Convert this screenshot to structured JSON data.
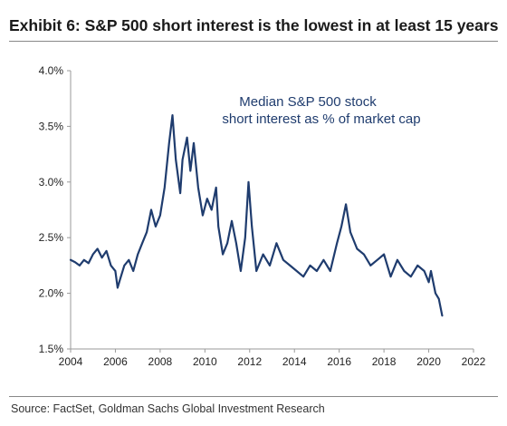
{
  "title": "Exhibit 6: S&P 500 short interest is the lowest in at least 15 years",
  "source": "Source: FactSet, Goldman Sachs Global Investment Research",
  "colors": {
    "line": "#1f3c6e",
    "annotation": "#1f3c6e",
    "axis": "#9a9a9a",
    "text": "#222222"
  },
  "chart_data": {
    "type": "line",
    "title": "",
    "xlabel": "",
    "ylabel": "",
    "xlim": [
      2004,
      2022
    ],
    "ylim": [
      1.5,
      4.0
    ],
    "grid": false,
    "annotation": {
      "line1": "Median S&P 500 stock",
      "line2": "short interest as % of market cap"
    },
    "x_ticks": [
      {
        "value": 2004,
        "label": "2004"
      },
      {
        "value": 2006,
        "label": "2006"
      },
      {
        "value": 2008,
        "label": "2008"
      },
      {
        "value": 2010,
        "label": "2010"
      },
      {
        "value": 2012,
        "label": "2012"
      },
      {
        "value": 2014,
        "label": "2014"
      },
      {
        "value": 2016,
        "label": "2016"
      },
      {
        "value": 2018,
        "label": "2018"
      },
      {
        "value": 2020,
        "label": "2020"
      },
      {
        "value": 2022,
        "label": "2022"
      }
    ],
    "y_ticks": [
      {
        "value": 1.5,
        "label": "1.5%"
      },
      {
        "value": 2.0,
        "label": "2.0%"
      },
      {
        "value": 2.5,
        "label": "2.5%"
      },
      {
        "value": 3.0,
        "label": "3.0%"
      },
      {
        "value": 3.5,
        "label": "3.5%"
      },
      {
        "value": 4.0,
        "label": "4.0%"
      }
    ],
    "series": [
      {
        "x": [
          2004.0,
          2004.2,
          2004.4,
          2004.6,
          2004.8,
          2005.0,
          2005.2,
          2005.4,
          2005.6,
          2005.8,
          2006.0,
          2006.1,
          2006.2,
          2006.4,
          2006.6,
          2006.8,
          2007.0,
          2007.2,
          2007.4,
          2007.6,
          2007.8,
          2008.0,
          2008.2,
          2008.4,
          2008.55,
          2008.7,
          2008.9,
          2009.0,
          2009.2,
          2009.35,
          2009.5,
          2009.7,
          2009.9,
          2010.1,
          2010.3,
          2010.5,
          2010.6,
          2010.8,
          2011.0,
          2011.2,
          2011.4,
          2011.6,
          2011.8,
          2011.95,
          2012.1,
          2012.3,
          2012.6,
          2012.9,
          2013.2,
          2013.5,
          2013.8,
          2014.1,
          2014.4,
          2014.7,
          2015.0,
          2015.3,
          2015.6,
          2015.9,
          2016.1,
          2016.3,
          2016.5,
          2016.8,
          2017.1,
          2017.4,
          2017.7,
          2018.0,
          2018.3,
          2018.6,
          2018.9,
          2019.2,
          2019.5,
          2019.8,
          2020.0,
          2020.1,
          2020.3,
          2020.45,
          2020.6
        ],
        "y": [
          2.3,
          2.28,
          2.25,
          2.3,
          2.27,
          2.35,
          2.4,
          2.32,
          2.38,
          2.25,
          2.2,
          2.05,
          2.12,
          2.25,
          2.3,
          2.2,
          2.35,
          2.45,
          2.55,
          2.75,
          2.6,
          2.7,
          2.95,
          3.35,
          3.6,
          3.2,
          2.9,
          3.2,
          3.4,
          3.1,
          3.35,
          2.95,
          2.7,
          2.85,
          2.75,
          2.95,
          2.6,
          2.35,
          2.45,
          2.65,
          2.45,
          2.2,
          2.5,
          3.0,
          2.6,
          2.2,
          2.35,
          2.25,
          2.45,
          2.3,
          2.25,
          2.2,
          2.15,
          2.25,
          2.2,
          2.3,
          2.2,
          2.45,
          2.6,
          2.8,
          2.55,
          2.4,
          2.35,
          2.25,
          2.3,
          2.35,
          2.15,
          2.3,
          2.2,
          2.15,
          2.25,
          2.2,
          2.1,
          2.2,
          2.0,
          1.95,
          1.8
        ]
      }
    ]
  }
}
